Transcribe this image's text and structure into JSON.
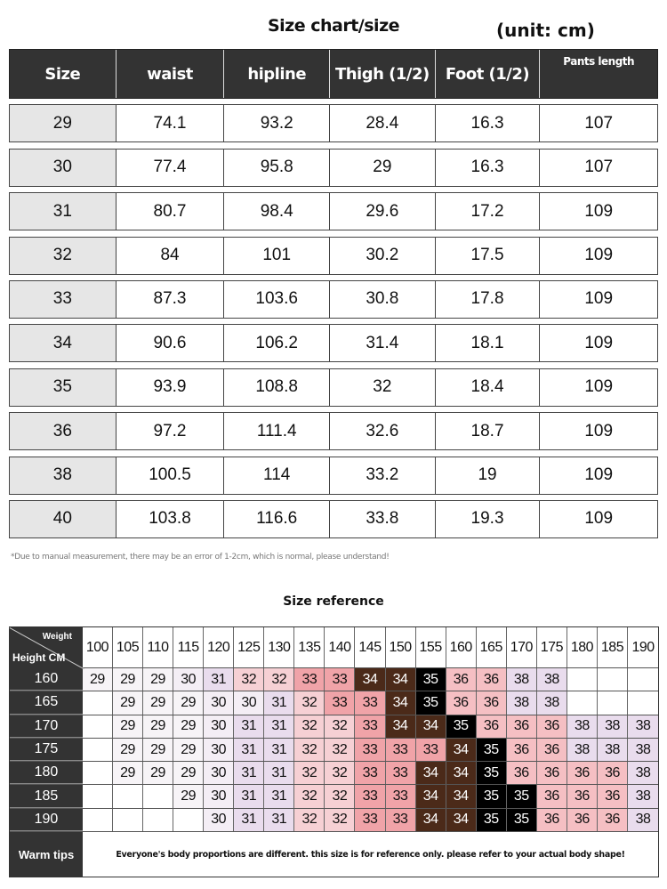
{
  "title": "Size chart/size",
  "unit": "(unit: cm)",
  "size_table": {
    "headers": [
      "Size",
      "waist",
      "hipline",
      "Thigh (1/2)",
      "Foot (1/2)",
      "Pants length"
    ],
    "rows": [
      [
        "29",
        "74.1",
        "93.2",
        "28.4",
        "16.3",
        "107"
      ],
      [
        "30",
        "77.4",
        "95.8",
        "29",
        "16.3",
        "107"
      ],
      [
        "31",
        "80.7",
        "98.4",
        "29.6",
        "17.2",
        "109"
      ],
      [
        "32",
        "84",
        "101",
        "30.2",
        "17.5",
        "109"
      ],
      [
        "33",
        "87.3",
        "103.6",
        "30.8",
        "17.8",
        "109"
      ],
      [
        "34",
        "90.6",
        "106.2",
        "31.4",
        "18.1",
        "109"
      ],
      [
        "35",
        "93.9",
        "108.8",
        "32",
        "18.4",
        "109"
      ],
      [
        "36",
        "97.2",
        "111.4",
        "32.6",
        "18.7",
        "109"
      ],
      [
        "38",
        "100.5",
        "114",
        "33.2",
        "19",
        "109"
      ],
      [
        "40",
        "103.8",
        "116.6",
        "33.8",
        "19.3",
        "109"
      ]
    ]
  },
  "note": "*Due to manual measurement, there may be an error of 1-2cm, which is normal, please understand!",
  "reference": {
    "title": "Size reference",
    "corner_weight": "Weight",
    "corner_height": "Height CM",
    "weights": [
      "100",
      "105",
      "110",
      "115",
      "120",
      "125",
      "130",
      "135",
      "140",
      "145",
      "150",
      "155",
      "160",
      "165",
      "170",
      "175",
      "180",
      "185",
      "190"
    ],
    "rows": [
      {
        "height": "160",
        "sizes": [
          "29",
          "29",
          "29",
          "30",
          "31",
          "32",
          "32",
          "33",
          "33",
          "34",
          "34",
          "35",
          "36",
          "36",
          "38",
          "38",
          "",
          "",
          ""
        ]
      },
      {
        "height": "165",
        "sizes": [
          "",
          "29",
          "29",
          "29",
          "30",
          "30",
          "31",
          "32",
          "33",
          "33",
          "34",
          "35",
          "36",
          "36",
          "38",
          "38",
          "",
          "",
          ""
        ]
      },
      {
        "height": "170",
        "sizes": [
          "",
          "29",
          "29",
          "29",
          "30",
          "31",
          "31",
          "32",
          "32",
          "33",
          "34",
          "34",
          "35",
          "36",
          "36",
          "36",
          "38",
          "38",
          "38"
        ]
      },
      {
        "height": "175",
        "sizes": [
          "",
          "29",
          "29",
          "29",
          "30",
          "31",
          "31",
          "32",
          "32",
          "33",
          "33",
          "33",
          "34",
          "35",
          "36",
          "36",
          "38",
          "38",
          "38"
        ]
      },
      {
        "height": "180",
        "sizes": [
          "",
          "29",
          "29",
          "29",
          "30",
          "31",
          "31",
          "32",
          "32",
          "33",
          "33",
          "34",
          "34",
          "35",
          "36",
          "36",
          "36",
          "36",
          "38"
        ]
      },
      {
        "height": "185",
        "sizes": [
          "",
          "",
          "",
          "29",
          "30",
          "31",
          "31",
          "32",
          "32",
          "33",
          "33",
          "34",
          "34",
          "35",
          "35",
          "36",
          "36",
          "36",
          "38"
        ]
      },
      {
        "height": "190",
        "sizes": [
          "",
          "",
          "",
          "",
          "30",
          "31",
          "31",
          "32",
          "32",
          "33",
          "33",
          "34",
          "34",
          "35",
          "35",
          "36",
          "36",
          "36",
          "38"
        ]
      }
    ],
    "size_colors": {
      "29": "#f7f4f7",
      "30": "#f4eef5",
      "31": "#e9dced",
      "32": "#f6d0d4",
      "33": "#f0a3a8",
      "34": "#4b2a19",
      "35": "#000000",
      "36": "#f5bfc3",
      "38": "#e9dced"
    },
    "warm_tips_label": "Warm tips",
    "warm_tips_text": "Everyone's body proportions are different. this size is for reference only. please refer to your actual body shape!"
  }
}
